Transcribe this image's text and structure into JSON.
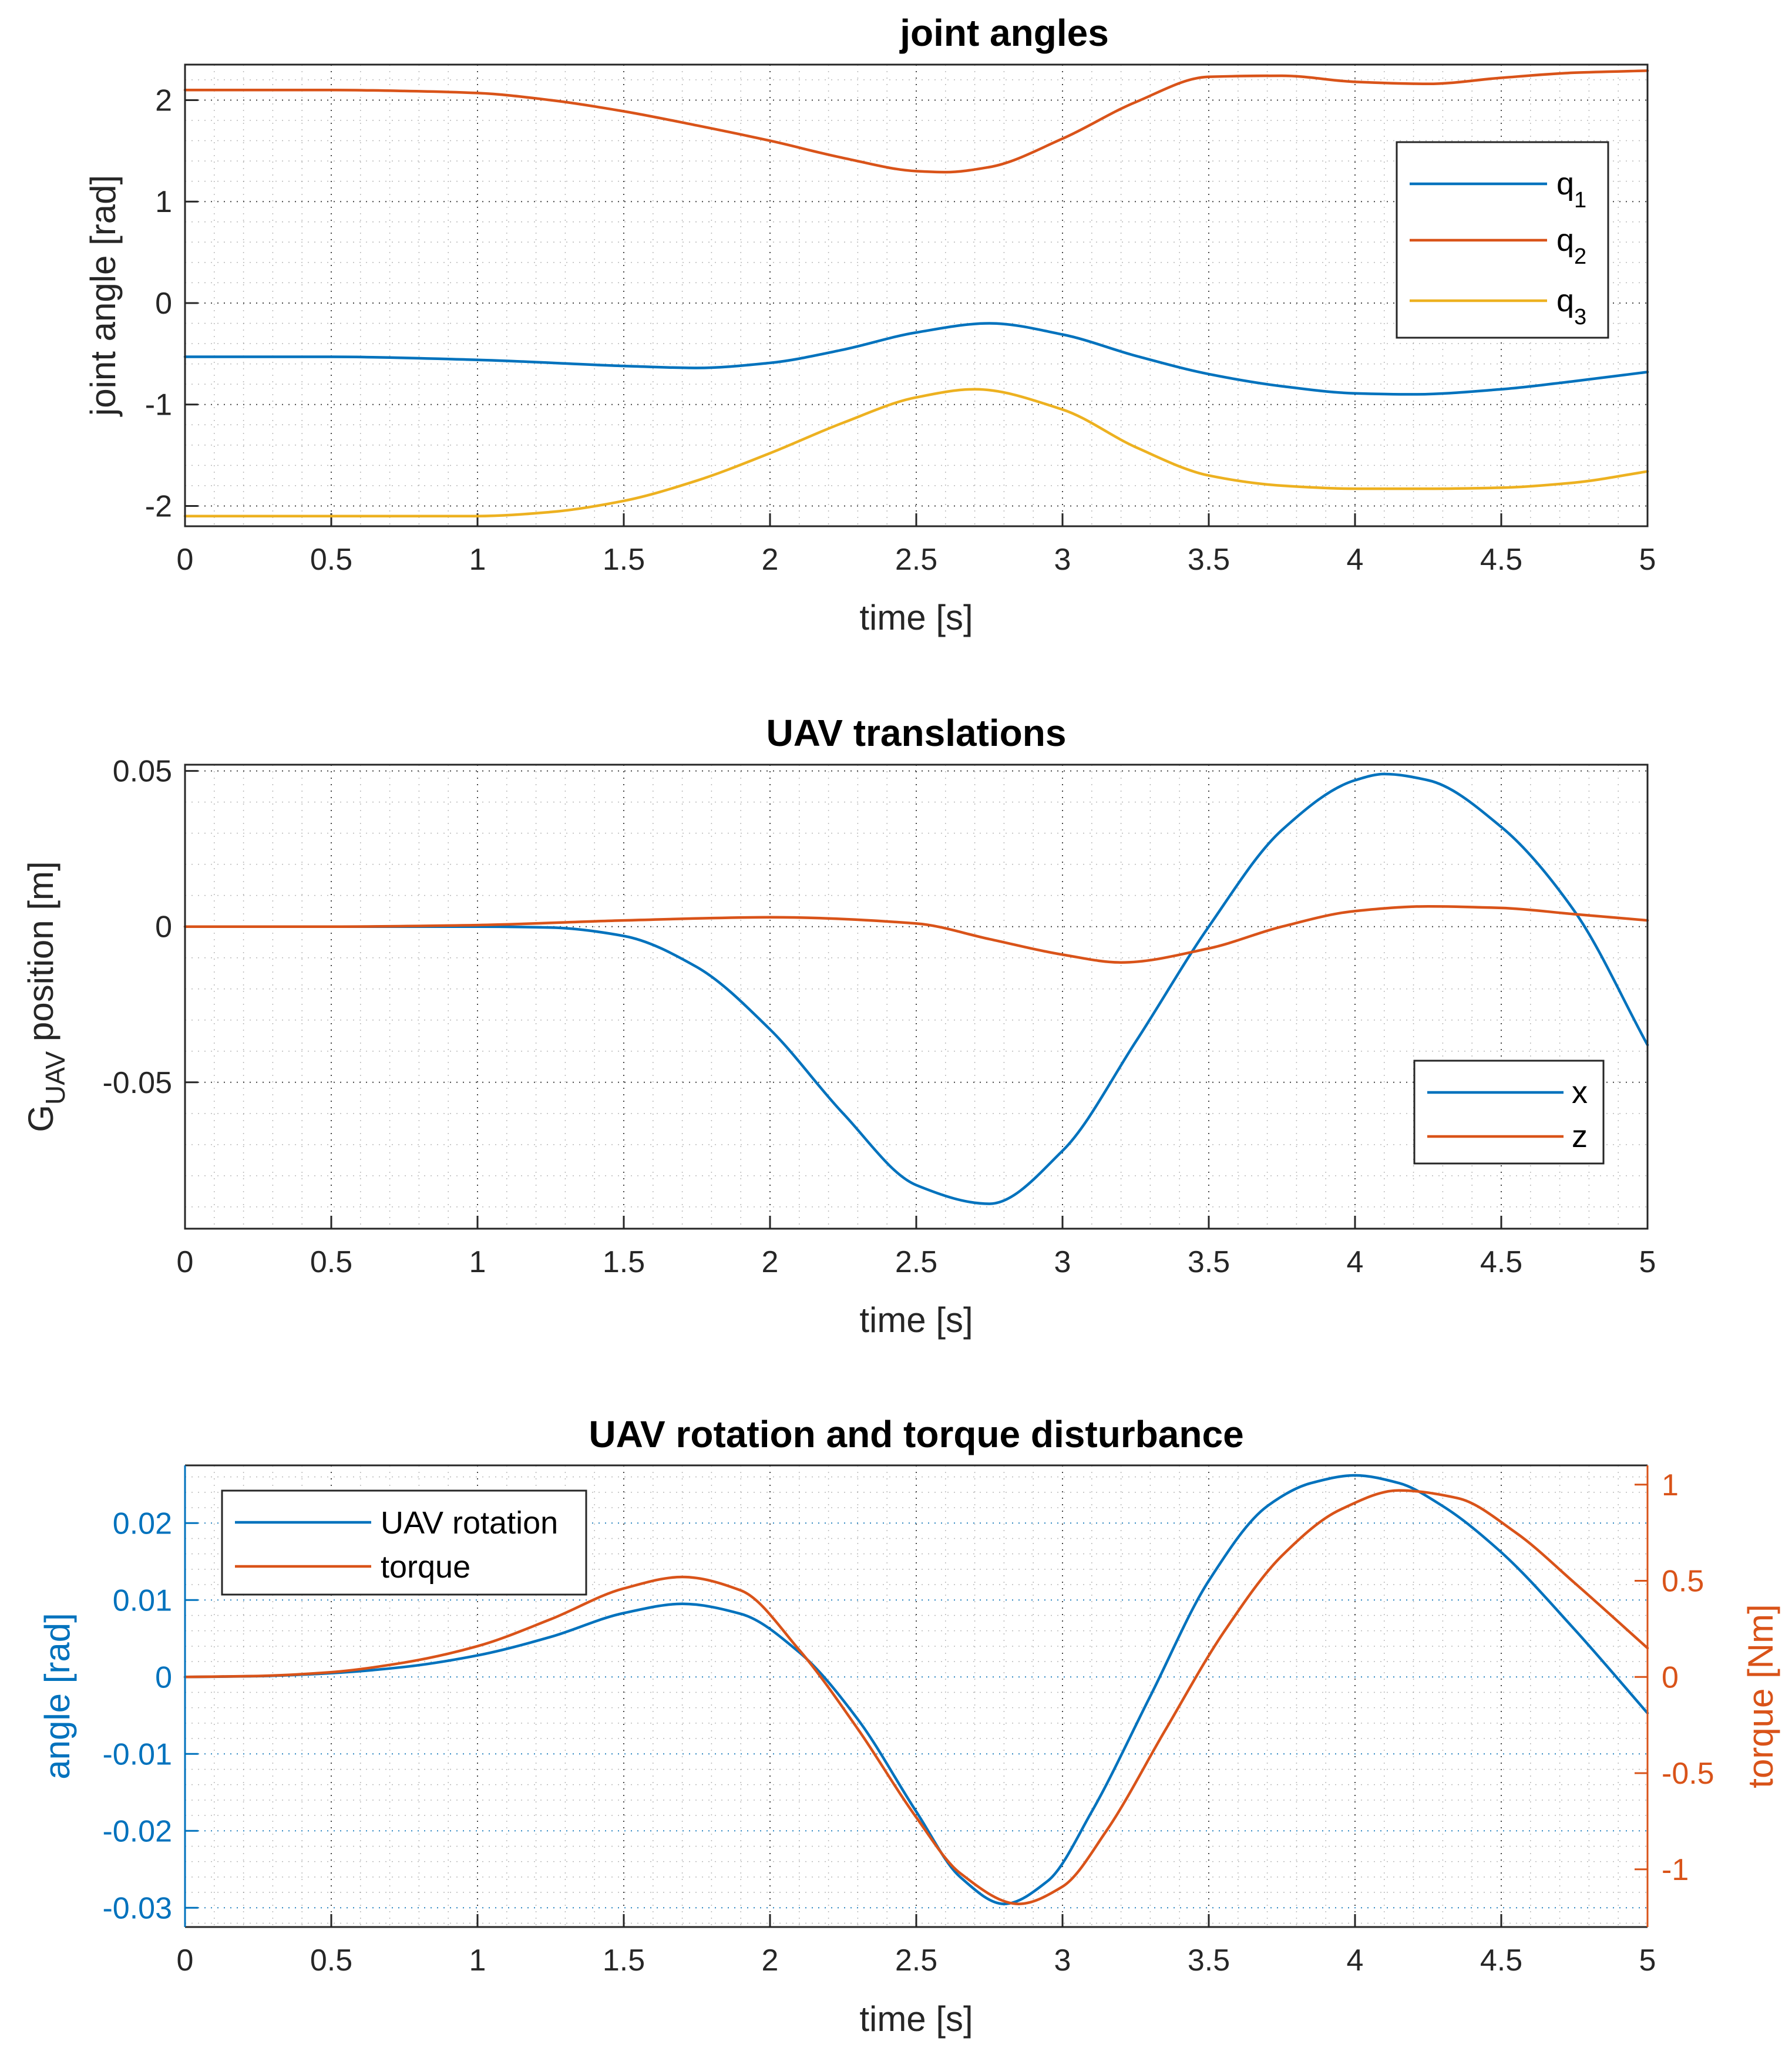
{
  "chart_data": [
    {
      "type": "line",
      "title": "joint angles",
      "xlabel": "time [s]",
      "ylabel": "joint angle [rad]",
      "xlim": [
        0,
        5
      ],
      "ylim": [
        -2.2,
        2.35
      ],
      "xticks": [
        0,
        0.5,
        1,
        1.5,
        2,
        2.5,
        3,
        3.5,
        4,
        4.5,
        5
      ],
      "xtick_labels": [
        "0",
        "0.5",
        "1",
        "1.5",
        "2",
        "2.5",
        "3",
        "3.5",
        "4",
        "4.5",
        "5"
      ],
      "yticks": [
        -2,
        -1,
        0,
        1,
        2
      ],
      "ytick_labels": [
        "-2",
        "-1",
        "0",
        "1",
        "2"
      ],
      "grid": true,
      "legend_location": "right",
      "series": [
        {
          "name": "q",
          "subscript": "1",
          "color": "#0072BD",
          "x": [
            0,
            0.5,
            1,
            1.5,
            1.75,
            2,
            2.25,
            2.5,
            2.75,
            3,
            3.25,
            3.5,
            3.75,
            4,
            4.2,
            4.5,
            4.75,
            5
          ],
          "y": [
            -0.53,
            -0.53,
            -0.56,
            -0.62,
            -0.64,
            -0.59,
            -0.46,
            -0.29,
            -0.2,
            -0.31,
            -0.52,
            -0.7,
            -0.82,
            -0.89,
            -0.9,
            -0.85,
            -0.77,
            -0.68
          ]
        },
        {
          "name": "q",
          "subscript": "2",
          "color": "#D95319",
          "x": [
            0,
            0.5,
            0.75,
            1,
            1.25,
            1.5,
            1.75,
            2,
            2.25,
            2.5,
            2.6,
            2.75,
            3,
            3.25,
            3.5,
            3.75,
            4,
            4.25,
            4.5,
            4.75,
            5
          ],
          "y": [
            2.1,
            2.1,
            2.09,
            2.07,
            2.0,
            1.89,
            1.75,
            1.6,
            1.43,
            1.3,
            1.29,
            1.34,
            1.62,
            1.98,
            2.23,
            2.24,
            2.18,
            2.16,
            2.22,
            2.27,
            2.29
          ]
        },
        {
          "name": "q",
          "subscript": "3",
          "color": "#EDB120",
          "x": [
            0,
            0.5,
            1,
            1.25,
            1.5,
            1.75,
            2,
            2.25,
            2.5,
            2.7,
            3,
            3.25,
            3.5,
            3.75,
            4,
            4.25,
            4.5,
            4.75,
            5
          ],
          "y": [
            -2.1,
            -2.1,
            -2.1,
            -2.06,
            -1.95,
            -1.75,
            -1.48,
            -1.18,
            -0.93,
            -0.85,
            -1.05,
            -1.42,
            -1.7,
            -1.8,
            -1.83,
            -1.83,
            -1.82,
            -1.77,
            -1.66
          ]
        }
      ]
    },
    {
      "type": "line",
      "title": "UAV translations",
      "xlabel": "time [s]",
      "ylabel_main": "G",
      "ylabel_sub": "UAV",
      "ylabel_rest": " position [m]",
      "xlim": [
        0,
        5
      ],
      "ylim": [
        -0.097,
        0.052
      ],
      "xticks": [
        0,
        0.5,
        1,
        1.5,
        2,
        2.5,
        3,
        3.5,
        4,
        4.5,
        5
      ],
      "xtick_labels": [
        "0",
        "0.5",
        "1",
        "1.5",
        "2",
        "2.5",
        "3",
        "3.5",
        "4",
        "4.5",
        "5"
      ],
      "yticks": [
        -0.05,
        0,
        0.05
      ],
      "ytick_labels": [
        "-0.05",
        "0",
        "0.05"
      ],
      "grid": true,
      "legend_location": "bottom-right",
      "series": [
        {
          "name": "x",
          "color": "#0072BD",
          "x": [
            0,
            0.5,
            1,
            1.25,
            1.5,
            1.75,
            2,
            2.25,
            2.5,
            2.75,
            3,
            3.25,
            3.5,
            3.75,
            4,
            4.1,
            4.25,
            4.5,
            4.75,
            5
          ],
          "y": [
            0,
            0,
            0,
            -0.0003,
            -0.003,
            -0.013,
            -0.033,
            -0.06,
            -0.083,
            -0.089,
            -0.072,
            -0.037,
            0.0,
            0.031,
            0.047,
            0.049,
            0.047,
            0.032,
            0.005,
            -0.038
          ]
        },
        {
          "name": "z",
          "color": "#D95319",
          "x": [
            0,
            0.5,
            1,
            1.5,
            2,
            2.5,
            2.75,
            3,
            3.2,
            3.5,
            3.75,
            4,
            4.25,
            4.5,
            4.75,
            5
          ],
          "y": [
            0,
            0,
            0.0005,
            0.002,
            0.003,
            0.001,
            -0.004,
            -0.009,
            -0.0115,
            -0.007,
            0.0,
            0.005,
            0.0065,
            0.006,
            0.004,
            0.002
          ]
        }
      ]
    },
    {
      "type": "line",
      "title": "UAV rotation and torque disturbance",
      "xlabel": "time [s]",
      "ylabel_left": "angle [rad]",
      "ylabel_right": "torque [Nm]",
      "left_color": "#0072BD",
      "right_color": "#D95319",
      "xlim": [
        0,
        5
      ],
      "ylim_left": [
        -0.0325,
        0.0275
      ],
      "ylim_right": [
        -1.3,
        1.1
      ],
      "xticks": [
        0,
        0.5,
        1,
        1.5,
        2,
        2.5,
        3,
        3.5,
        4,
        4.5,
        5
      ],
      "xtick_labels": [
        "0",
        "0.5",
        "1",
        "1.5",
        "2",
        "2.5",
        "3",
        "3.5",
        "4",
        "4.5",
        "5"
      ],
      "yticks_left": [
        -0.03,
        -0.02,
        -0.01,
        0,
        0.01,
        0.02
      ],
      "ytick_labels_left": [
        "-0.03",
        "-0.02",
        "-0.01",
        "0",
        "0.01",
        "0.02"
      ],
      "yticks_right": [
        -1,
        -0.5,
        0,
        0.5,
        1
      ],
      "ytick_labels_right": [
        "-1",
        "-0.5",
        "0",
        "0.5",
        "1"
      ],
      "grid": true,
      "legend_location": "top-left",
      "series": [
        {
          "name": "UAV rotation",
          "axis": "left",
          "color": "#0072BD",
          "x": [
            0,
            0.25,
            0.5,
            0.75,
            1,
            1.25,
            1.5,
            1.7,
            1.9,
            2.1,
            2.3,
            2.5,
            2.65,
            2.8,
            2.95,
            3.1,
            3.3,
            3.5,
            3.7,
            3.85,
            4.0,
            4.15,
            4.3,
            4.5,
            4.75,
            5
          ],
          "y": [
            0,
            0.0001,
            0.0005,
            0.0013,
            0.0028,
            0.0052,
            0.0083,
            0.0095,
            0.0082,
            0.0032,
            -0.0055,
            -0.0175,
            -0.026,
            -0.0295,
            -0.0265,
            -0.0175,
            -0.0025,
            0.0125,
            0.0222,
            0.0252,
            0.0262,
            0.0252,
            0.0222,
            0.0162,
            0.0062,
            -0.0047
          ]
        },
        {
          "name": "torque",
          "axis": "right",
          "color": "#D95319",
          "x": [
            0,
            0.25,
            0.5,
            0.75,
            1,
            1.25,
            1.5,
            1.7,
            1.9,
            2.1,
            2.3,
            2.5,
            2.65,
            2.85,
            3.0,
            3.15,
            3.35,
            3.55,
            3.75,
            3.95,
            4.15,
            4.35,
            4.55,
            4.75,
            5
          ],
          "y": [
            0,
            0.005,
            0.025,
            0.075,
            0.16,
            0.3,
            0.46,
            0.52,
            0.45,
            0.14,
            -0.27,
            -0.73,
            -1.02,
            -1.18,
            -1.09,
            -0.8,
            -0.28,
            0.23,
            0.63,
            0.87,
            0.97,
            0.93,
            0.75,
            0.49,
            0.15
          ]
        }
      ]
    }
  ]
}
